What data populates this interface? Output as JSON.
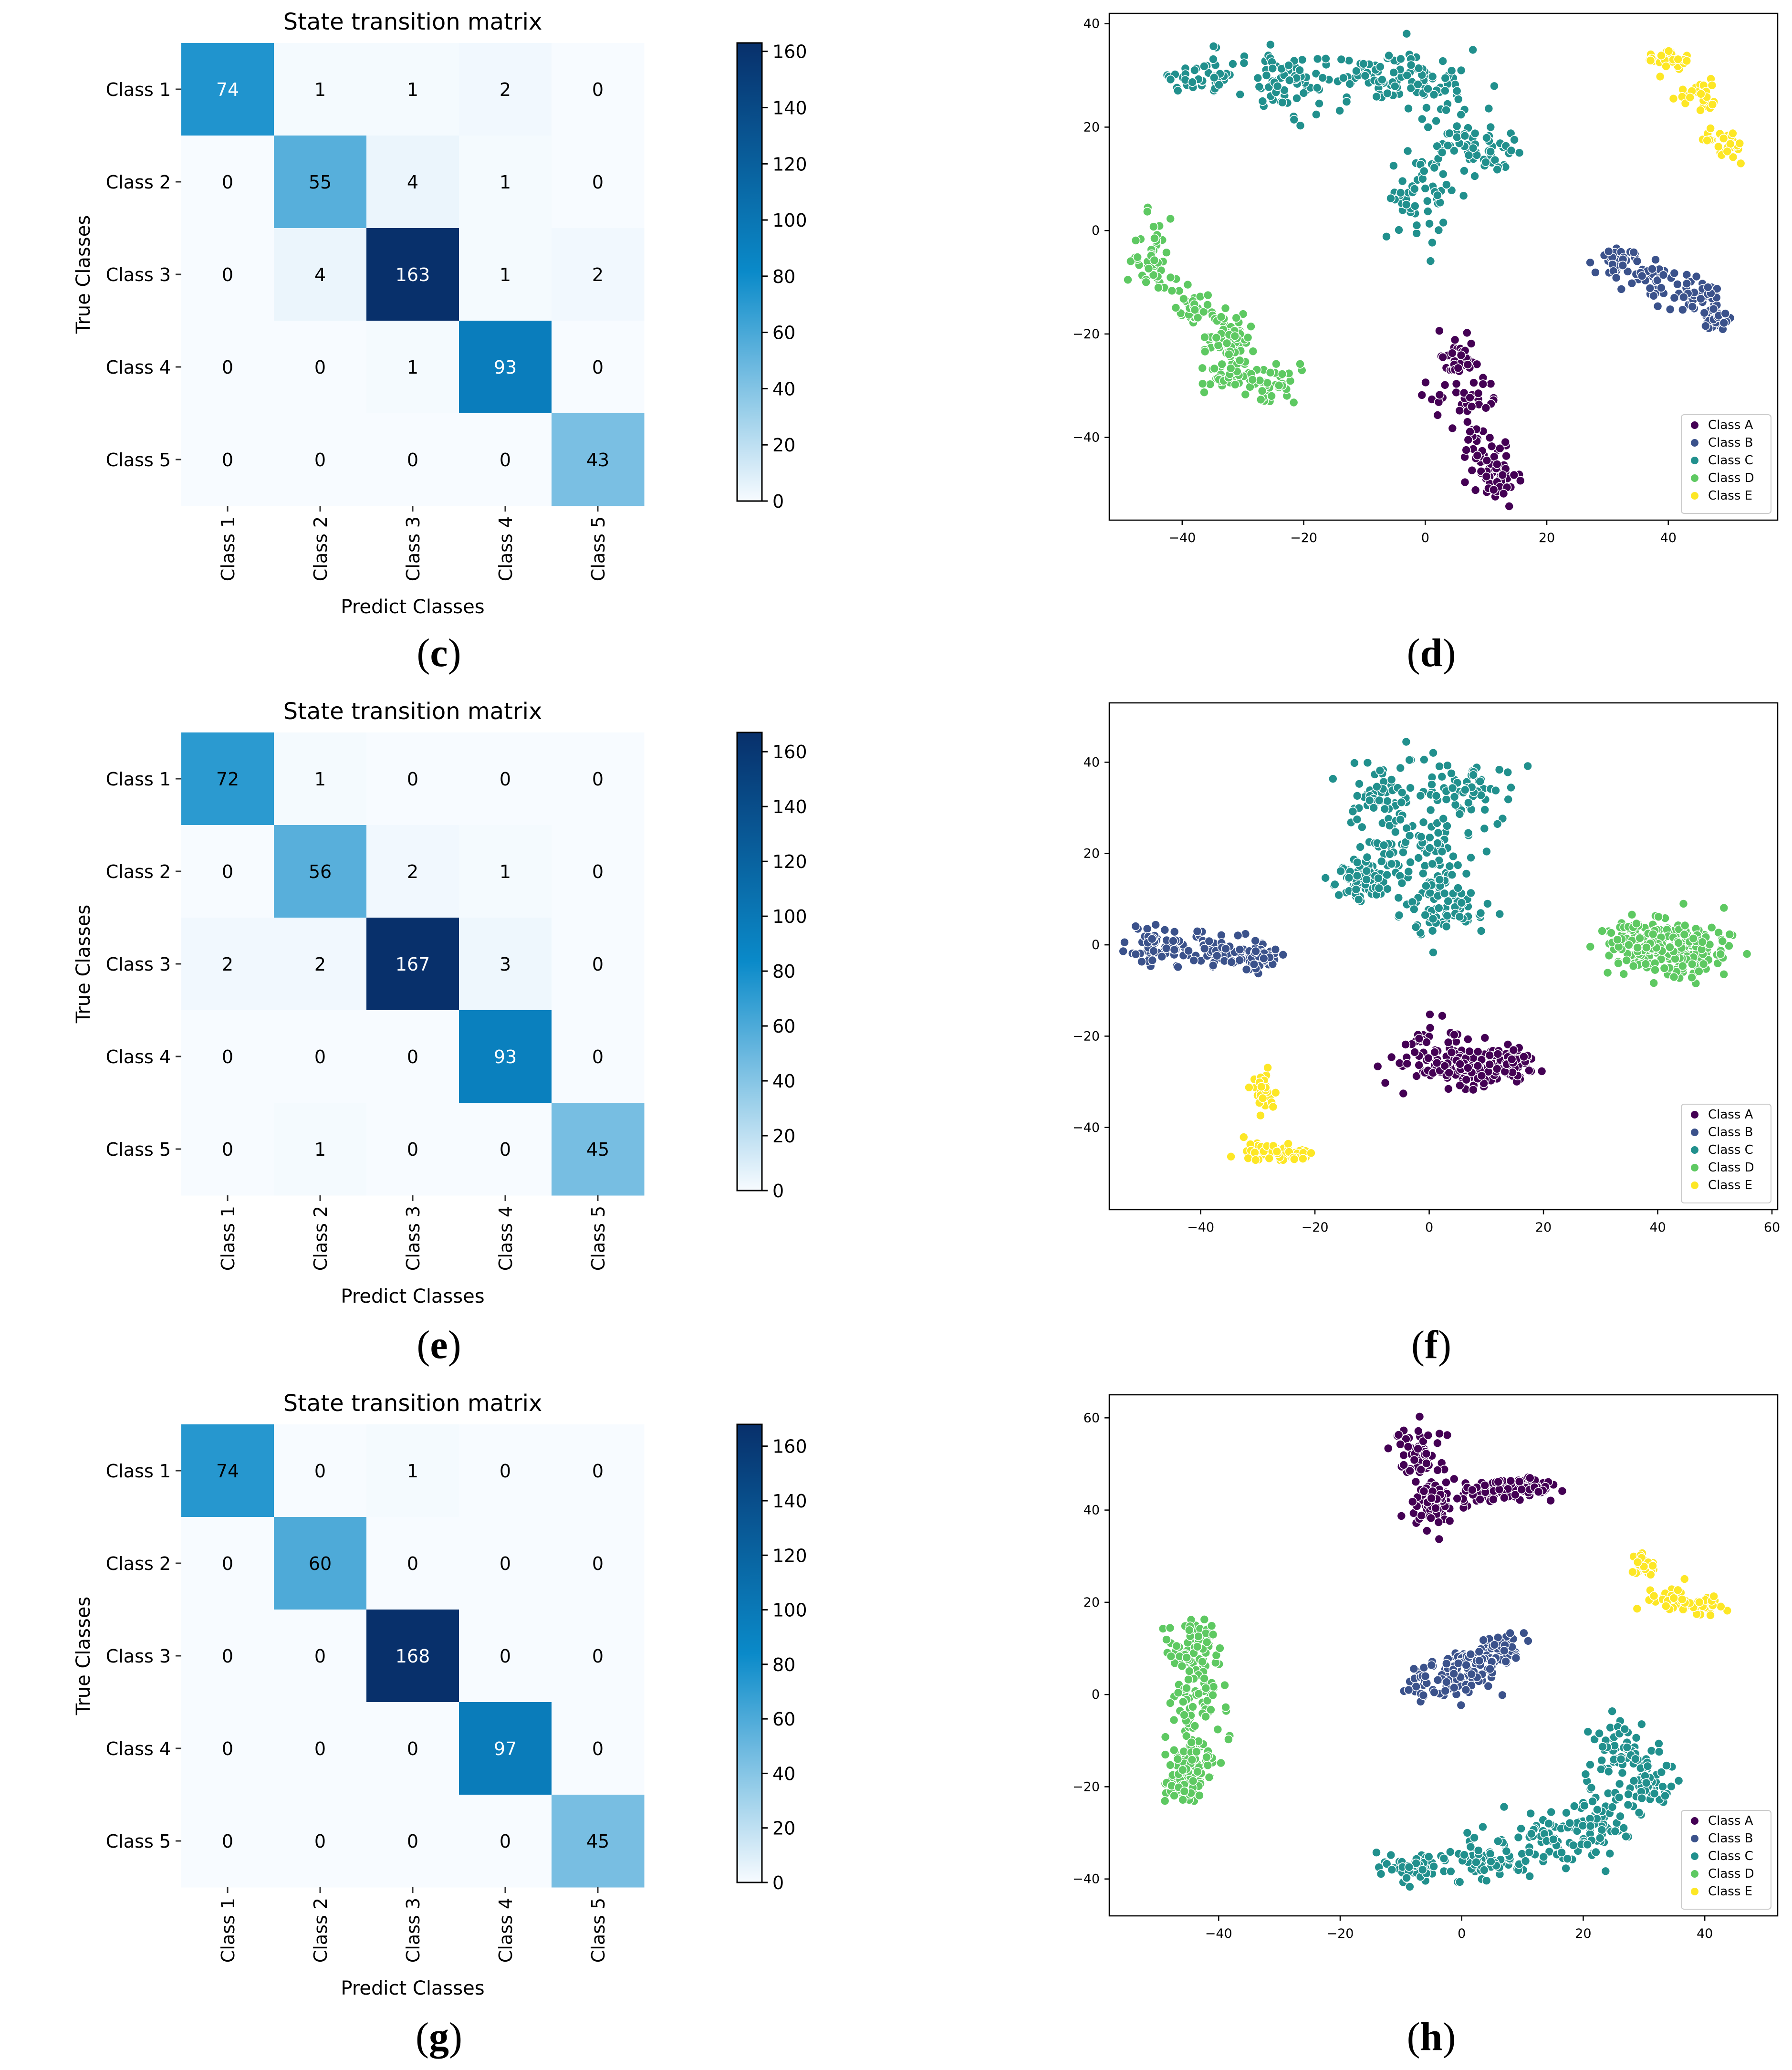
{
  "panels": [
    "c",
    "d",
    "e",
    "f",
    "g",
    "h"
  ],
  "captions": {
    "c": "c",
    "d": "d",
    "e": "e",
    "f": "f",
    "g": "g",
    "h": "h"
  },
  "colors": {
    "class_a": "#440154",
    "class_b": "#3b528b",
    "class_c": "#21908d",
    "class_d": "#5ec962",
    "class_e": "#fde725",
    "cmap_low": "#f7fbff",
    "cmap_mid": "#0a8ac9",
    "cmap_high": "#08306b"
  },
  "chart_data": [
    {
      "id": "c",
      "type": "heatmap",
      "title": "State transition matrix",
      "xlabel": "Predict Classes",
      "ylabel": "True Classes",
      "x_labels": [
        "Class 1",
        "Class 2",
        "Class 3",
        "Class 4",
        "Class 5"
      ],
      "y_labels": [
        "Class 1",
        "Class 2",
        "Class 3",
        "Class 4",
        "Class 5"
      ],
      "matrix": [
        [
          74,
          1,
          1,
          2,
          0
        ],
        [
          0,
          55,
          4,
          1,
          0
        ],
        [
          0,
          4,
          163,
          1,
          2
        ],
        [
          0,
          0,
          1,
          93,
          0
        ],
        [
          0,
          0,
          0,
          0,
          43
        ]
      ],
      "colorbar": {
        "min": 0,
        "max": 163,
        "ticks": [
          0,
          20,
          40,
          60,
          80,
          100,
          120,
          140,
          160
        ]
      }
    },
    {
      "id": "d",
      "type": "scatter",
      "xlim": [
        -52,
        58
      ],
      "ylim": [
        -56,
        42
      ],
      "xticks": [
        -40,
        -20,
        0,
        20,
        40
      ],
      "yticks": [
        -40,
        -20,
        0,
        20,
        40
      ],
      "legend": {
        "position": "bottom-right",
        "entries": [
          "Class A",
          "Class B",
          "Class C",
          "Class D",
          "Class E"
        ]
      },
      "clusters": [
        {
          "name": "Class A",
          "color": "#440154",
          "n": 150,
          "shape": [
            [
              5,
              -25,
              3,
              4
            ],
            [
              7,
              -33,
              5,
              5
            ],
            [
              10,
              -43,
              4,
              5
            ],
            [
              12,
              -48,
              3,
              3
            ]
          ]
        },
        {
          "name": "Class B",
          "color": "#3b528b",
          "n": 150,
          "shape": [
            [
              32,
              -6,
              4,
              3
            ],
            [
              38,
              -9,
              5,
              4
            ],
            [
              45,
              -13,
              4,
              3
            ],
            [
              48,
              -17,
              2,
              2
            ]
          ]
        },
        {
          "name": "Class C",
          "color": "#21908d",
          "n": 340,
          "shape": [
            [
              -36,
              30,
              7,
              4
            ],
            [
              -22,
              29,
              6,
              5
            ],
            [
              -8,
              30,
              7,
              5
            ],
            [
              2,
              27,
              7,
              6
            ],
            [
              9,
              16,
              6,
              4
            ],
            [
              -1,
              7,
              5,
              8
            ]
          ]
        },
        {
          "name": "Class D",
          "color": "#5ec962",
          "n": 230,
          "shape": [
            [
              -45,
              -6,
              3,
              7
            ],
            [
              -38,
              -15,
              4,
              4
            ],
            [
              -32,
              -21,
              4,
              4
            ],
            [
              -33,
              -28,
              4,
              4
            ],
            [
              -26,
              -30,
              5,
              3
            ]
          ]
        },
        {
          "name": "Class E",
          "color": "#fde725",
          "n": 80,
          "shape": [
            [
              40,
              33,
              3,
              2
            ],
            [
              45,
              26,
              3,
              3
            ],
            [
              50,
              17,
              3,
              3
            ]
          ]
        }
      ]
    },
    {
      "id": "e",
      "type": "heatmap",
      "title": "State transition matrix",
      "xlabel": "Predict Classes",
      "ylabel": "True Classes",
      "x_labels": [
        "Class 1",
        "Class 2",
        "Class 3",
        "Class 4",
        "Class 5"
      ],
      "y_labels": [
        "Class 1",
        "Class 2",
        "Class 3",
        "Class 4",
        "Class 5"
      ],
      "matrix": [
        [
          72,
          1,
          0,
          0,
          0
        ],
        [
          0,
          56,
          2,
          1,
          0
        ],
        [
          2,
          2,
          167,
          3,
          0
        ],
        [
          0,
          0,
          0,
          93,
          0
        ],
        [
          0,
          1,
          0,
          0,
          45
        ]
      ],
      "colorbar": {
        "min": 0,
        "max": 167,
        "ticks": [
          0,
          20,
          40,
          60,
          80,
          100,
          120,
          140,
          160
        ]
      }
    },
    {
      "id": "f",
      "type": "scatter",
      "xlim": [
        -56,
        61
      ],
      "ylim": [
        -58,
        53
      ],
      "xticks": [
        -40,
        -20,
        0,
        20,
        40,
        60
      ],
      "yticks": [
        -40,
        -20,
        0,
        20,
        40
      ],
      "legend": {
        "position": "bottom-right",
        "entries": [
          "Class A",
          "Class B",
          "Class C",
          "Class D",
          "Class E"
        ]
      },
      "clusters": [
        {
          "name": "Class A",
          "color": "#440154",
          "n": 240,
          "shape": [
            [
              0,
              -24,
              6,
              6
            ],
            [
              7,
              -28,
              5,
              4
            ],
            [
              14,
              -26,
              4,
              3
            ]
          ]
        },
        {
          "name": "Class B",
          "color": "#3b528b",
          "n": 170,
          "shape": [
            [
              -48,
              0,
              4,
              4
            ],
            [
              -38,
              -1,
              5,
              4
            ],
            [
              -30,
              -3,
              3,
              3
            ]
          ]
        },
        {
          "name": "Class C",
          "color": "#21908d",
          "n": 360,
          "shape": [
            [
              -8,
              32,
              7,
              8
            ],
            [
              5,
              33,
              7,
              7
            ],
            [
              -2,
              20,
              8,
              7
            ],
            [
              2,
              8,
              7,
              6
            ],
            [
              -12,
              14,
              4,
              5
            ]
          ]
        },
        {
          "name": "Class D",
          "color": "#5ec962",
          "n": 260,
          "shape": [
            [
              37,
              0,
              6,
              5
            ],
            [
              45,
              -1,
              7,
              6
            ]
          ]
        },
        {
          "name": "Class E",
          "color": "#fde725",
          "n": 80,
          "shape": [
            [
              -29,
              -32,
              2,
              5
            ],
            [
              -29,
              -45,
              4,
              3
            ],
            [
              -24,
              -46,
              3,
              2
            ]
          ]
        }
      ]
    },
    {
      "id": "g",
      "type": "heatmap",
      "title": "State transition matrix",
      "xlabel": "Predict Classes",
      "ylabel": "True Classes",
      "x_labels": [
        "Class 1",
        "Class 2",
        "Class 3",
        "Class 4",
        "Class 5"
      ],
      "y_labels": [
        "Class 1",
        "Class 2",
        "Class 3",
        "Class 4",
        "Class 5"
      ],
      "matrix": [
        [
          74,
          0,
          1,
          0,
          0
        ],
        [
          0,
          60,
          0,
          0,
          0
        ],
        [
          0,
          0,
          168,
          0,
          0
        ],
        [
          0,
          0,
          0,
          97,
          0
        ],
        [
          0,
          0,
          0,
          0,
          45
        ]
      ],
      "colorbar": {
        "min": 0,
        "max": 168,
        "ticks": [
          0,
          20,
          40,
          60,
          80,
          100,
          120,
          140,
          160
        ]
      }
    },
    {
      "id": "h",
      "type": "scatter",
      "xlim": [
        -58,
        52
      ],
      "ylim": [
        -48,
        65
      ],
      "xticks": [
        -40,
        -20,
        0,
        20,
        40
      ],
      "yticks": [
        -40,
        -20,
        0,
        20,
        40,
        60
      ],
      "legend": {
        "position": "bottom-right",
        "entries": [
          "Class A",
          "Class B",
          "Class C",
          "Class D",
          "Class E"
        ]
      },
      "clusters": [
        {
          "name": "Class A",
          "color": "#440154",
          "n": 230,
          "shape": [
            [
              -7,
              52,
              4,
              5
            ],
            [
              -5,
              42,
              4,
              5
            ],
            [
              5,
              44,
              5,
              3
            ],
            [
              11,
              45,
              4,
              2
            ]
          ]
        },
        {
          "name": "Class B",
          "color": "#3b528b",
          "n": 180,
          "shape": [
            [
              -4,
              2,
              5,
              4
            ],
            [
              2,
              6,
              5,
              5
            ],
            [
              7,
              10,
              3,
              3
            ]
          ]
        },
        {
          "name": "Class C",
          "color": "#21908d",
          "n": 380,
          "shape": [
            [
              -8,
              -38,
              5,
              3
            ],
            [
              4,
              -36,
              6,
              4
            ],
            [
              14,
              -32,
              6,
              5
            ],
            [
              22,
              -28,
              5,
              7
            ],
            [
              27,
              -12,
              5,
              6
            ],
            [
              31,
              -20,
              4,
              5
            ]
          ]
        },
        {
          "name": "Class D",
          "color": "#5ec962",
          "n": 250,
          "shape": [
            [
              -44,
              10,
              4,
              6
            ],
            [
              -43,
              -2,
              5,
              6
            ],
            [
              -44,
              -14,
              4,
              5
            ],
            [
              -46,
              -20,
              3,
              3
            ]
          ]
        },
        {
          "name": "Class E",
          "color": "#fde725",
          "n": 90,
          "shape": [
            [
              30,
              28,
              2,
              2
            ],
            [
              35,
              22,
              4,
              3
            ],
            [
              40,
              19,
              4,
              2
            ]
          ]
        }
      ]
    }
  ]
}
